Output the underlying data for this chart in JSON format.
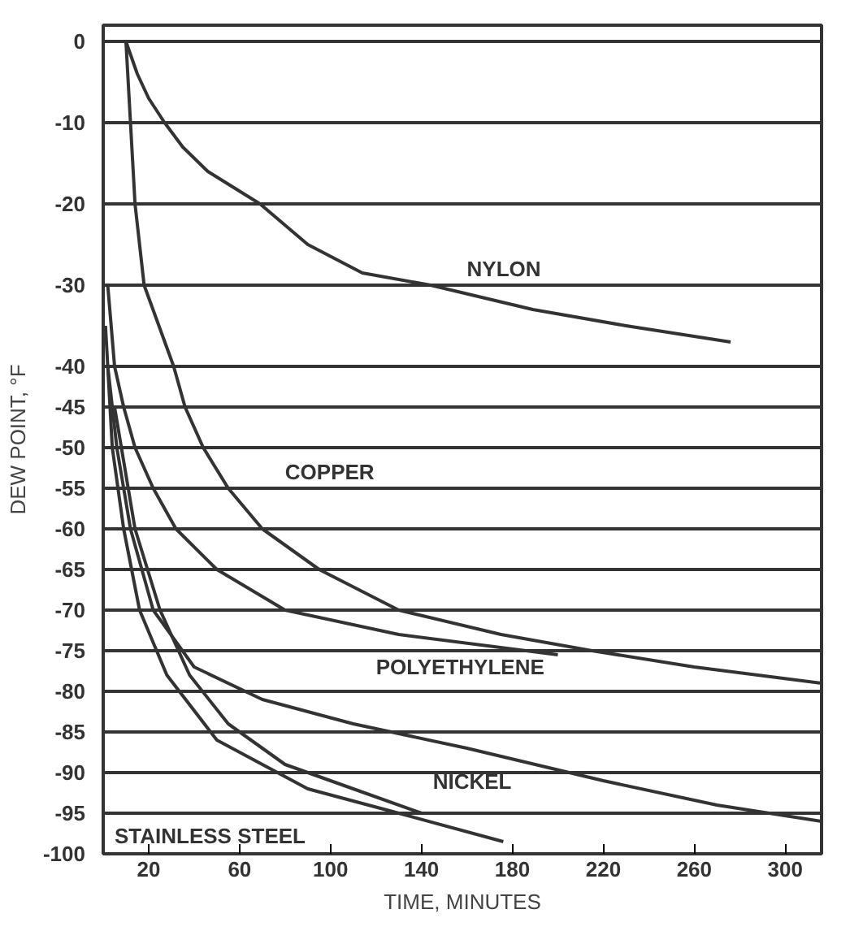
{
  "chart_data": {
    "type": "line",
    "xlabel": "TIME, MINUTES",
    "ylabel": "DEW POINT, °F",
    "xlim": [
      0,
      316
    ],
    "ylim": [
      -100,
      2
    ],
    "xticks": [
      20,
      60,
      100,
      140,
      180,
      220,
      260,
      300
    ],
    "yticks": [
      0,
      -10,
      -20,
      -30,
      -40,
      -45,
      -50,
      -55,
      -60,
      -65,
      -70,
      -75,
      -80,
      -85,
      -90,
      -95,
      -100
    ],
    "grid": "y",
    "marker": "none",
    "line_style": "solid",
    "series": [
      {
        "name": "NYLON",
        "color": "#333333",
        "x": [
          10,
          15,
          20,
          27,
          35,
          46,
          69,
          90,
          114,
          144,
          189,
          230,
          276
        ],
        "values": [
          0,
          -4,
          -7,
          -10,
          -13,
          -16,
          -20,
          -25,
          -28.5,
          -30,
          -33,
          -35,
          -37
        ]
      },
      {
        "name": "COPPER",
        "color": "#333333",
        "x": [
          10,
          12,
          14,
          18,
          31,
          36,
          44,
          55,
          70,
          95,
          130,
          175,
          215,
          260,
          316
        ],
        "values": [
          0,
          -10,
          -20,
          -30,
          -40,
          -45,
          -50,
          -55,
          -60,
          -65,
          -70,
          -73,
          -75,
          -77,
          -79
        ]
      },
      {
        "name": "POLYETHYLENE",
        "color": "#333333",
        "x": [
          2,
          5,
          9,
          14,
          22,
          32,
          50,
          80,
          130,
          200
        ],
        "values": [
          -30,
          -40,
          -45,
          -50,
          -55,
          -60,
          -65,
          -70,
          -73,
          -75.5
        ]
      },
      {
        "name": null,
        "color": "#333333",
        "x": [
          2,
          6,
          12,
          22,
          40,
          70,
          110,
          160,
          220,
          270,
          316
        ],
        "values": [
          -40,
          -50,
          -60,
          -70,
          -77,
          -81,
          -84,
          -87,
          -91,
          -94,
          -96
        ]
      },
      {
        "name": "NICKEL",
        "color": "#333333",
        "x": [
          5,
          14,
          25,
          38,
          55,
          80,
          110,
          140
        ],
        "values": [
          -45,
          -60,
          -70,
          -78,
          -84,
          -89,
          -92,
          -95
        ]
      },
      {
        "name": "STAINLESS STEEL",
        "color": "#333333",
        "x": [
          1,
          4,
          9,
          16,
          28,
          50,
          90,
          130,
          176
        ],
        "values": [
          -35,
          -50,
          -60,
          -70,
          -78,
          -86,
          -92,
          -95,
          -98.5
        ]
      }
    ]
  }
}
